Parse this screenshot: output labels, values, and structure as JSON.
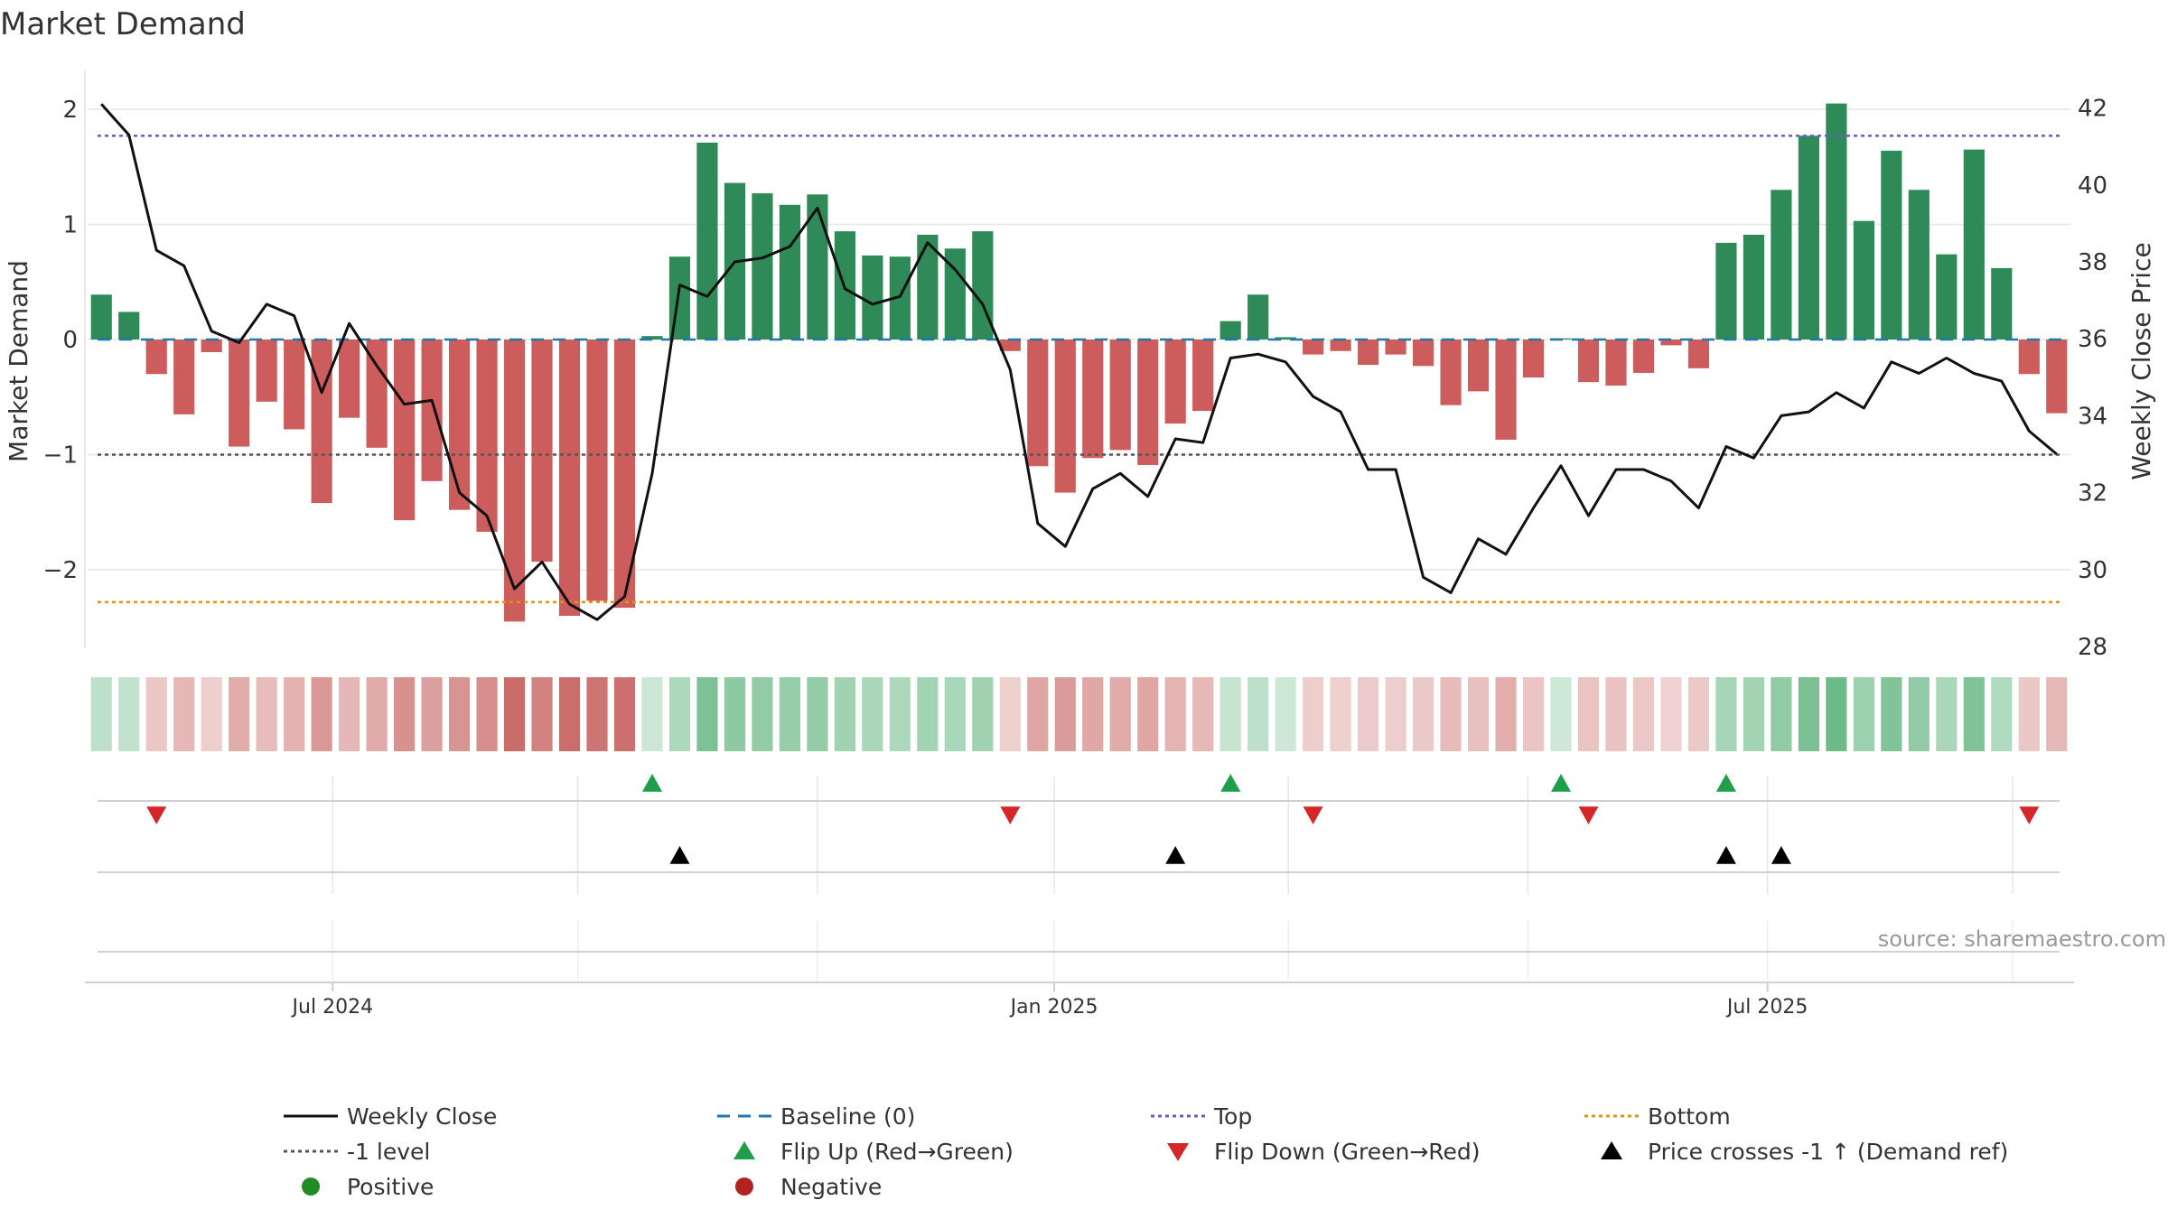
{
  "chart_data": {
    "type": "bar",
    "title": "Market Demand",
    "ylabel": "Market Demand",
    "y2label": "Weekly Close Price",
    "ylim": [
      -2.7,
      2.4
    ],
    "y2lim": [
      27.5,
      43.1
    ],
    "yticks": [
      -2,
      -1,
      0,
      1,
      2
    ],
    "y2ticks": [
      28,
      30,
      32,
      34,
      36,
      38,
      40,
      42
    ],
    "xticks": [
      {
        "label": "Jul 2024",
        "index": 8.4
      },
      {
        "label": "Jan 2025",
        "index": 34.6
      },
      {
        "label": "Jul 2025",
        "index": 60.5
      }
    ],
    "reference_lines": {
      "baseline": 0,
      "top": 1.77,
      "minus_one": -1,
      "bottom": -2.28
    },
    "weeks": 72,
    "demand": [
      0.39,
      0.24,
      -0.3,
      -0.65,
      -0.11,
      -0.93,
      -0.54,
      -0.78,
      -1.42,
      -0.68,
      -0.94,
      -1.57,
      -1.23,
      -1.48,
      -1.67,
      -2.45,
      -1.93,
      -2.4,
      -2.27,
      -2.33,
      0.03,
      0.72,
      1.71,
      1.36,
      1.27,
      1.17,
      1.26,
      0.94,
      0.73,
      0.72,
      0.91,
      0.79,
      0.94,
      -0.1,
      -1.1,
      -1.33,
      -1.03,
      -0.96,
      -1.09,
      -0.73,
      -0.62,
      0.16,
      0.39,
      0.02,
      -0.13,
      -0.1,
      -0.22,
      -0.13,
      -0.23,
      -0.57,
      -0.45,
      -0.87,
      -0.33,
      0.01,
      -0.37,
      -0.4,
      -0.29,
      -0.05,
      -0.25,
      0.84,
      0.91,
      1.3,
      1.77,
      2.05,
      1.03,
      1.64,
      1.3,
      0.74,
      1.65,
      0.62,
      -0.3,
      -0.64
    ],
    "price": [
      42.1,
      41.3,
      38.3,
      37.9,
      36.2,
      35.9,
      36.9,
      36.6,
      34.6,
      36.4,
      35.3,
      34.3,
      34.4,
      32.0,
      31.4,
      29.5,
      30.2,
      29.1,
      28.7,
      29.3,
      32.5,
      37.4,
      37.1,
      38.0,
      38.1,
      38.4,
      39.4,
      37.3,
      36.9,
      37.1,
      38.5,
      37.8,
      36.9,
      35.2,
      31.2,
      30.6,
      32.1,
      32.5,
      31.9,
      33.4,
      33.3,
      35.5,
      35.6,
      35.4,
      34.5,
      34.1,
      32.6,
      32.6,
      29.8,
      29.4,
      30.8,
      30.4,
      31.6,
      32.7,
      31.4,
      32.6,
      32.6,
      32.3,
      31.6,
      33.2,
      32.9,
      34.0,
      34.1,
      34.6,
      34.2,
      35.4,
      35.1,
      35.5,
      35.1,
      34.9,
      33.6,
      33.0
    ],
    "flip_up_weeks": [
      20,
      41,
      53,
      59
    ],
    "flip_down_weeks": [
      2,
      33,
      44,
      54,
      70
    ],
    "price_cross_weeks": [
      21,
      39,
      59,
      61
    ],
    "colors": {
      "positive": "#2e8b57",
      "negative": "#cd5c5c",
      "price": "#111111",
      "baseline": "#1f77b4",
      "top": "#6a5acd",
      "minus_one": "#555555",
      "bottom": "#e69500",
      "flip_up": "#1e9e4a",
      "flip_down": "#d62728",
      "cross": "#000000"
    }
  },
  "legend": {
    "weekly_close": "Weekly Close",
    "baseline": "Baseline (0)",
    "top": "Top",
    "bottom": "Bottom",
    "minus_one": "-1 level",
    "flip_up": "Flip Up (Red→Green)",
    "flip_down": "Flip Down (Green→Red)",
    "price_cross": "Price crosses -1 ↑ (Demand ref)",
    "positive": "Positive",
    "negative": "Negative",
    "positive_color": "#228b22",
    "negative_color": "#b22222"
  },
  "source": "source: sharemaestro.com"
}
